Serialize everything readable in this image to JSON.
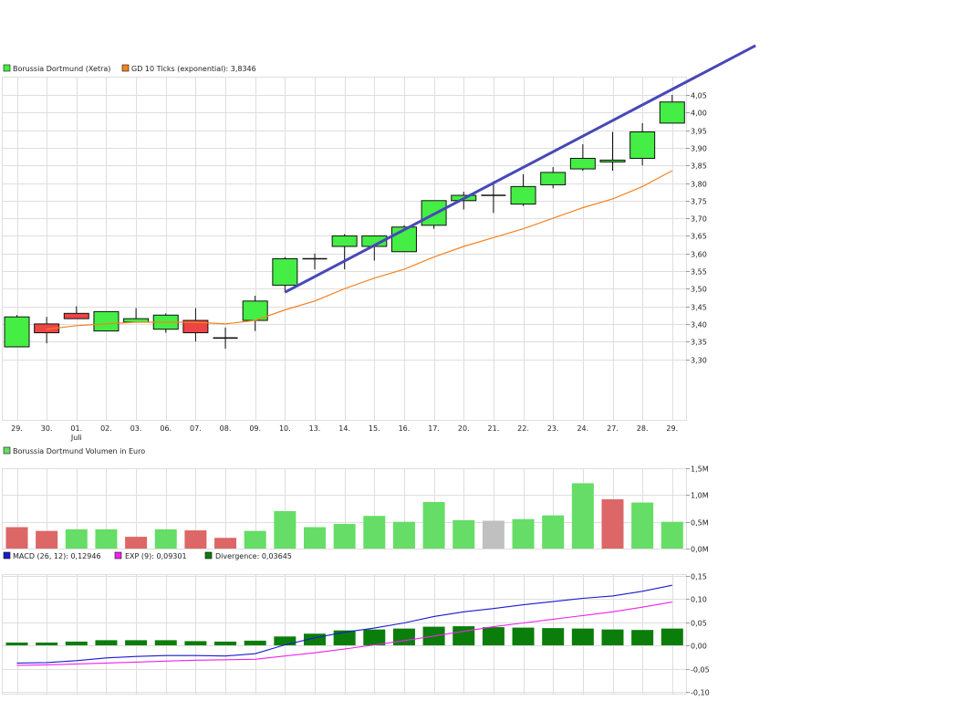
{
  "colors": {
    "grid": "#dedede",
    "up": "#44ee44",
    "down": "#ee4444",
    "neutral": "#111111",
    "vol_up": "#66dd66",
    "vol_down": "#dd6666",
    "vol_neutral": "#c0c0c0",
    "sma": "#f58220",
    "trend": "#4848b8",
    "macd": "#1a1ad0",
    "signal": "#ee22ee",
    "divergence": "#0a7d0a"
  },
  "legends": {
    "price_series": "Borussia Dortmund (Xetra)",
    "sma": "GD 10 Ticks (exponential): 3,8346",
    "volume": "Borussia Dortmund Volumen in Euro",
    "macd": "MACD (26, 12): 0,12946",
    "signal": "EXP (9): 0,09301",
    "divergence": "Divergence: 0,03645"
  },
  "chart_data": [
    {
      "type": "candlestick",
      "series": [
        {
          "name": "Borussia Dortmund (Xetra)"
        },
        {
          "name": "GD 10 Ticks (exponential): 3,8346"
        }
      ],
      "dates": [
        "29.",
        "30.",
        "01.",
        "02.",
        "03.",
        "06.",
        "07.",
        "08.",
        "09.",
        "10.",
        "13.",
        "14.",
        "15.",
        "16.",
        "17.",
        "20.",
        "21.",
        "22.",
        "23.",
        "24.",
        "27.",
        "28.",
        "29."
      ],
      "date_sublabels": {
        "2": "Juli"
      },
      "candles": [
        {
          "o": 3.335,
          "h": 3.425,
          "l": 3.335,
          "c": 3.42
        },
        {
          "o": 3.4,
          "h": 3.42,
          "l": 3.345,
          "c": 3.375
        },
        {
          "o": 3.43,
          "h": 3.45,
          "l": 3.415,
          "c": 3.415
        },
        {
          "o": 3.38,
          "h": 3.435,
          "l": 3.38,
          "c": 3.435
        },
        {
          "o": 3.405,
          "h": 3.445,
          "l": 3.405,
          "c": 3.415
        },
        {
          "o": 3.385,
          "h": 3.43,
          "l": 3.375,
          "c": 3.425
        },
        {
          "o": 3.41,
          "h": 3.445,
          "l": 3.35,
          "c": 3.375
        },
        {
          "o": 3.36,
          "h": 3.39,
          "l": 3.33,
          "c": 3.36
        },
        {
          "o": 3.41,
          "h": 3.48,
          "l": 3.38,
          "c": 3.465
        },
        {
          "o": 3.51,
          "h": 3.59,
          "l": 3.49,
          "c": 3.585
        },
        {
          "o": 3.585,
          "h": 3.6,
          "l": 3.555,
          "c": 3.585
        },
        {
          "o": 3.62,
          "h": 3.655,
          "l": 3.555,
          "c": 3.65
        },
        {
          "o": 3.62,
          "h": 3.65,
          "l": 3.58,
          "c": 3.65
        },
        {
          "o": 3.605,
          "h": 3.68,
          "l": 3.605,
          "c": 3.675
        },
        {
          "o": 3.68,
          "h": 3.75,
          "l": 3.67,
          "c": 3.75
        },
        {
          "o": 3.75,
          "h": 3.775,
          "l": 3.725,
          "c": 3.765
        },
        {
          "o": 3.765,
          "h": 3.805,
          "l": 3.715,
          "c": 3.765
        },
        {
          "o": 3.74,
          "h": 3.825,
          "l": 3.735,
          "c": 3.79
        },
        {
          "o": 3.795,
          "h": 3.845,
          "l": 3.785,
          "c": 3.83
        },
        {
          "o": 3.84,
          "h": 3.91,
          "l": 3.835,
          "c": 3.87
        },
        {
          "o": 3.86,
          "h": 3.945,
          "l": 3.835,
          "c": 3.865
        },
        {
          "o": 3.87,
          "h": 3.97,
          "l": 3.85,
          "c": 3.945
        },
        {
          "o": 3.97,
          "h": 4.05,
          "l": 3.97,
          "c": 4.03
        }
      ],
      "sma_values": [
        null,
        3.385,
        3.395,
        3.4,
        3.405,
        3.405,
        3.405,
        3.4,
        3.41,
        3.44,
        3.465,
        3.5,
        3.53,
        3.555,
        3.59,
        3.62,
        3.645,
        3.67,
        3.7,
        3.73,
        3.755,
        3.79,
        3.835
      ],
      "trendline": [
        {
          "x_index": 9.0,
          "y": 3.49
        },
        {
          "x_index": 24.8,
          "y": 4.19
        }
      ],
      "ylim": [
        3.27,
        4.08
      ],
      "yticks": [
        3.3,
        3.35,
        3.4,
        3.45,
        3.5,
        3.55,
        3.6,
        3.65,
        3.7,
        3.75,
        3.8,
        3.85,
        3.9,
        3.95,
        4.0,
        4.05
      ],
      "ytick_labels": [
        "3,30",
        "3,35",
        "3,40",
        "3,45",
        "3,50",
        "3,55",
        "3,60",
        "3,65",
        "3,70",
        "3,75",
        "3,80",
        "3,85",
        "3,90",
        "3,95",
        "4,00",
        "4,05"
      ],
      "grid": true
    },
    {
      "type": "bar",
      "series": [
        {
          "name": "Borussia Dortmund Volumen in Euro"
        }
      ],
      "values_million": [
        0.4,
        0.33,
        0.36,
        0.36,
        0.22,
        0.36,
        0.34,
        0.2,
        0.33,
        0.7,
        0.4,
        0.46,
        0.61,
        0.5,
        0.87,
        0.53,
        0.52,
        0.55,
        0.62,
        1.22,
        0.92,
        0.86,
        0.5
      ],
      "directions": [
        "down",
        "down",
        "up",
        "up",
        "down",
        "up",
        "down",
        "down",
        "up",
        "up",
        "up",
        "up",
        "up",
        "up",
        "up",
        "up",
        "neutral",
        "up",
        "up",
        "up",
        "down",
        "up",
        "up"
      ],
      "ylim": [
        0,
        1.5
      ],
      "yticks": [
        0,
        0.5,
        1.0,
        1.5
      ],
      "ytick_labels": [
        "0,0M",
        "0,5M",
        "1,0M",
        "1,5M"
      ],
      "grid": true
    },
    {
      "type": "line",
      "series": [
        {
          "name": "MACD (26, 12): 0,12946",
          "values": [
            -0.038,
            -0.037,
            -0.033,
            -0.027,
            -0.024,
            -0.022,
            -0.022,
            -0.023,
            -0.018,
            0.001,
            0.016,
            0.028,
            0.037,
            0.048,
            0.062,
            0.072,
            0.079,
            0.087,
            0.094,
            0.101,
            0.106,
            0.116,
            0.129
          ]
        },
        {
          "name": "EXP (9): 0,09301",
          "values": [
            -0.043,
            -0.042,
            -0.04,
            -0.038,
            -0.036,
            -0.034,
            -0.032,
            -0.031,
            -0.03,
            -0.023,
            -0.016,
            -0.008,
            0.001,
            0.01,
            0.02,
            0.03,
            0.04,
            0.048,
            0.056,
            0.064,
            0.072,
            0.082,
            0.093
          ]
        },
        {
          "name": "Divergence: 0,03645",
          "values": [
            0.006,
            0.006,
            0.008,
            0.011,
            0.011,
            0.011,
            0.009,
            0.008,
            0.01,
            0.019,
            0.025,
            0.032,
            0.034,
            0.036,
            0.04,
            0.041,
            0.039,
            0.038,
            0.037,
            0.036,
            0.034,
            0.033,
            0.036
          ]
        }
      ],
      "ylim": [
        -0.1,
        0.15
      ],
      "yticks": [
        -0.1,
        -0.05,
        0.0,
        0.05,
        0.1,
        0.15
      ],
      "ytick_labels": [
        "-0,10",
        "-0,05",
        "0,00",
        "0,05",
        "0,10",
        "0,15"
      ],
      "grid": true
    }
  ]
}
